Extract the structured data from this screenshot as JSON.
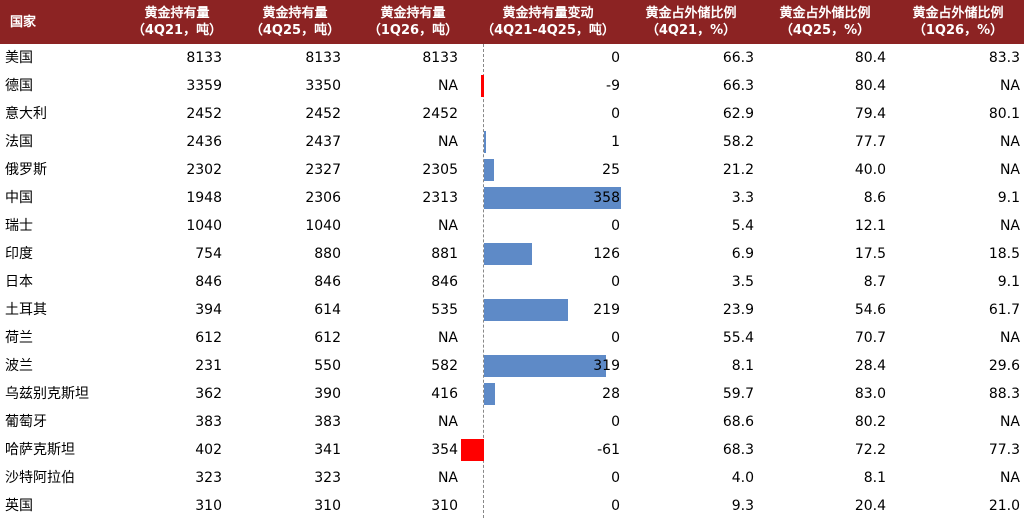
{
  "colors": {
    "header_bg": "#8c2323",
    "positive_bar": "#5e8ac7",
    "negative_bar": "#ff0000"
  },
  "headers": [
    {
      "line1": "国家",
      "line2": ""
    },
    {
      "line1": "黄金持有量",
      "line2": "（4Q21，吨）"
    },
    {
      "line1": "黄金持有量",
      "line2": "（4Q25，吨）"
    },
    {
      "line1": "黄金持有量",
      "line2": "（1Q26，吨）"
    },
    {
      "line1": "黄金持有量变动",
      "line2": "（4Q21-4Q25，吨）"
    },
    {
      "line1": "黄金占外储比例",
      "line2": "（4Q21，%）"
    },
    {
      "line1": "黄金占外储比例",
      "line2": "（4Q25，%）"
    },
    {
      "line1": "黄金占外储比例",
      "line2": "（1Q26，%）"
    }
  ],
  "chart_data": {
    "type": "table",
    "bar_column": "黄金持有量变动（4Q21-4Q25，吨）",
    "bar_max": 358,
    "rows": [
      {
        "country": "美国",
        "h4q21": "8133",
        "h4q25": "8133",
        "h1q26": "8133",
        "change": 0,
        "change_label": "0",
        "p4q21": "66.3",
        "p4q25": "80.4",
        "p1q26": "83.3"
      },
      {
        "country": "德国",
        "h4q21": "3359",
        "h4q25": "3350",
        "h1q26": "NA",
        "change": -9,
        "change_label": "-9",
        "p4q21": "66.3",
        "p4q25": "80.4",
        "p1q26": "NA"
      },
      {
        "country": "意大利",
        "h4q21": "2452",
        "h4q25": "2452",
        "h1q26": "2452",
        "change": 0,
        "change_label": "0",
        "p4q21": "62.9",
        "p4q25": "79.4",
        "p1q26": "80.1"
      },
      {
        "country": "法国",
        "h4q21": "2436",
        "h4q25": "2437",
        "h1q26": "NA",
        "change": 1,
        "change_label": "1",
        "p4q21": "58.2",
        "p4q25": "77.7",
        "p1q26": "NA"
      },
      {
        "country": "俄罗斯",
        "h4q21": "2302",
        "h4q25": "2327",
        "h1q26": "2305",
        "change": 25,
        "change_label": "25",
        "p4q21": "21.2",
        "p4q25": "40.0",
        "p1q26": "NA"
      },
      {
        "country": "中国",
        "h4q21": "1948",
        "h4q25": "2306",
        "h1q26": "2313",
        "change": 358,
        "change_label": "358",
        "p4q21": "3.3",
        "p4q25": "8.6",
        "p1q26": "9.1"
      },
      {
        "country": "瑞士",
        "h4q21": "1040",
        "h4q25": "1040",
        "h1q26": "NA",
        "change": 0,
        "change_label": "0",
        "p4q21": "5.4",
        "p4q25": "12.1",
        "p1q26": "NA"
      },
      {
        "country": "印度",
        "h4q21": "754",
        "h4q25": "880",
        "h1q26": "881",
        "change": 126,
        "change_label": "126",
        "p4q21": "6.9",
        "p4q25": "17.5",
        "p1q26": "18.5"
      },
      {
        "country": "日本",
        "h4q21": "846",
        "h4q25": "846",
        "h1q26": "846",
        "change": 0,
        "change_label": "0",
        "p4q21": "3.5",
        "p4q25": "8.7",
        "p1q26": "9.1"
      },
      {
        "country": "土耳其",
        "h4q21": "394",
        "h4q25": "614",
        "h1q26": "535",
        "change": 219,
        "change_label": "219",
        "p4q21": "23.9",
        "p4q25": "54.6",
        "p1q26": "61.7"
      },
      {
        "country": "荷兰",
        "h4q21": "612",
        "h4q25": "612",
        "h1q26": "NA",
        "change": 0,
        "change_label": "0",
        "p4q21": "55.4",
        "p4q25": "70.7",
        "p1q26": "NA"
      },
      {
        "country": "波兰",
        "h4q21": "231",
        "h4q25": "550",
        "h1q26": "582",
        "change": 319,
        "change_label": "319",
        "p4q21": "8.1",
        "p4q25": "28.4",
        "p1q26": "29.6"
      },
      {
        "country": "乌兹别克斯坦",
        "h4q21": "362",
        "h4q25": "390",
        "h1q26": "416",
        "change": 28,
        "change_label": "28",
        "p4q21": "59.7",
        "p4q25": "83.0",
        "p1q26": "88.3"
      },
      {
        "country": "葡萄牙",
        "h4q21": "383",
        "h4q25": "383",
        "h1q26": "NA",
        "change": 0,
        "change_label": "0",
        "p4q21": "68.6",
        "p4q25": "80.2",
        "p1q26": "NA"
      },
      {
        "country": "哈萨克斯坦",
        "h4q21": "402",
        "h4q25": "341",
        "h1q26": "354",
        "change": -61,
        "change_label": "-61",
        "p4q21": "68.3",
        "p4q25": "72.2",
        "p1q26": "77.3"
      },
      {
        "country": "沙特阿拉伯",
        "h4q21": "323",
        "h4q25": "323",
        "h1q26": "NA",
        "change": 0,
        "change_label": "0",
        "p4q21": "4.0",
        "p4q25": "8.1",
        "p1q26": "NA"
      },
      {
        "country": "英国",
        "h4q21": "310",
        "h4q25": "310",
        "h1q26": "310",
        "change": 0,
        "change_label": "0",
        "p4q21": "9.3",
        "p4q25": "20.4",
        "p1q26": "21.0"
      }
    ]
  }
}
